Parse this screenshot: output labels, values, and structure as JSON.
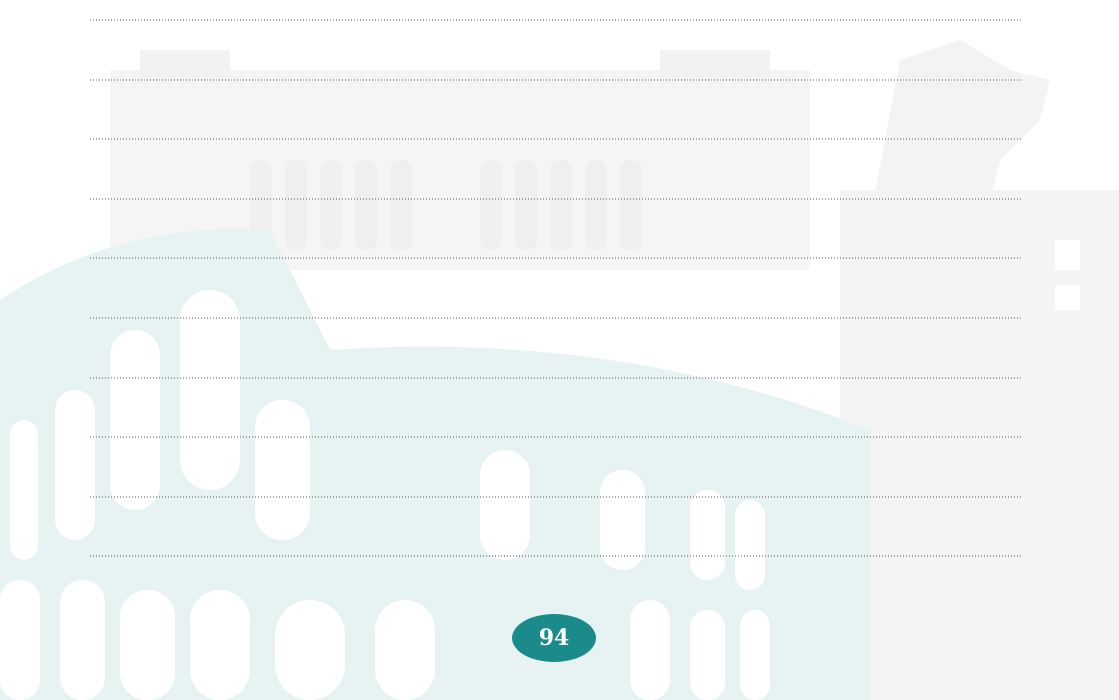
{
  "page_number": "94"
}
